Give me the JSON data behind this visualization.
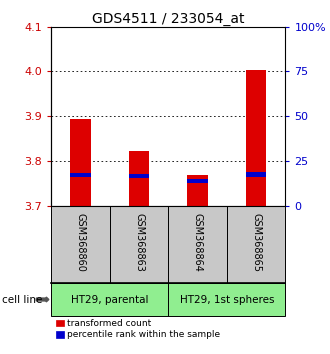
{
  "title": "GDS4511 / 233054_at",
  "samples": [
    "GSM368860",
    "GSM368863",
    "GSM368864",
    "GSM368865"
  ],
  "red_values": [
    3.893,
    3.822,
    3.768,
    4.003
  ],
  "blue_values": [
    3.764,
    3.762,
    3.751,
    3.765
  ],
  "blue_bar_height": 0.01,
  "ylim": [
    3.7,
    4.1
  ],
  "yticks_left": [
    3.7,
    3.8,
    3.9,
    4.0,
    4.1
  ],
  "yticks_right": [
    0,
    25,
    50,
    75,
    100
  ],
  "cell_line_groups": [
    {
      "label": "HT29, parental",
      "samples": [
        0,
        1
      ],
      "color": "#90EE90"
    },
    {
      "label": "HT29, 1st spheres",
      "samples": [
        2,
        3
      ],
      "color": "#90EE90"
    }
  ],
  "bar_width": 0.35,
  "red_color": "#DD0000",
  "blue_color": "#0000CC",
  "label_bg_color": "#C8C8C8",
  "cell_line_label": "cell line",
  "legend_red": "transformed count",
  "legend_blue": "percentile rank within the sample",
  "left_tick_color": "#CC0000",
  "right_tick_color": "#0000CC",
  "title_fontsize": 10,
  "tick_fontsize": 8,
  "bar_bottom": 3.7
}
